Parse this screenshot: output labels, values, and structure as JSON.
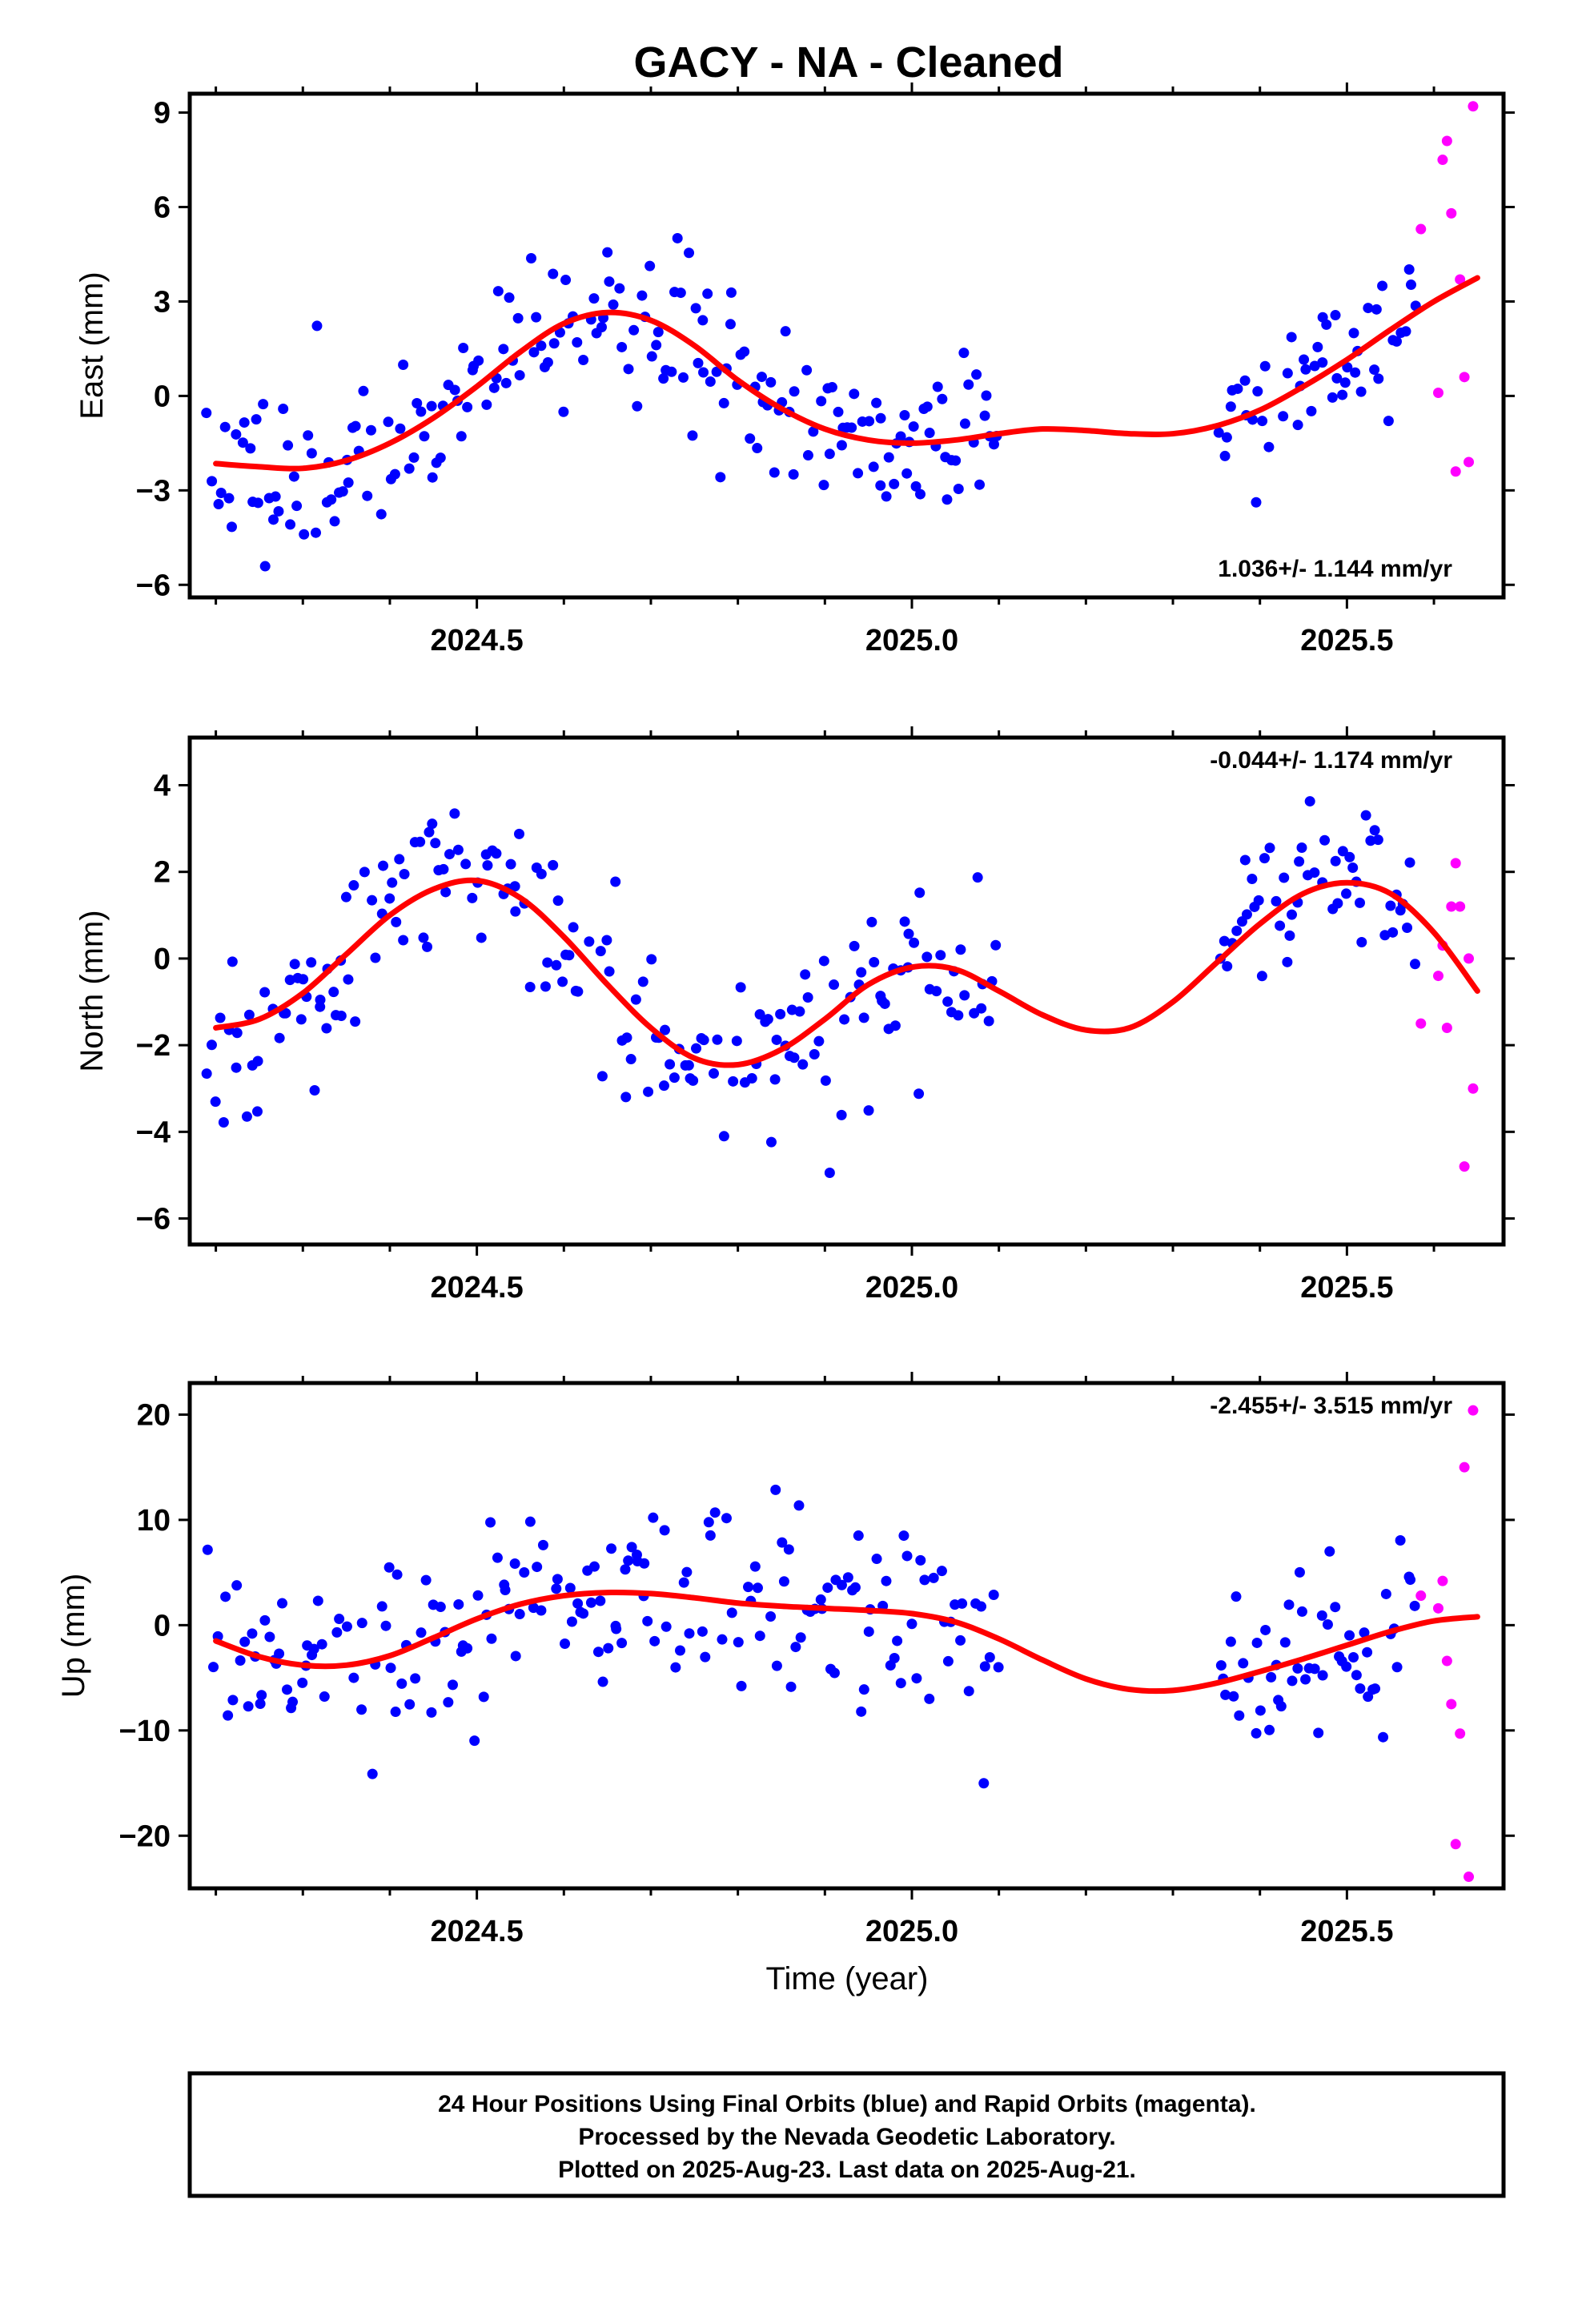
{
  "title": "GACY  - NA - Cleaned",
  "colors": {
    "final": "#0000ff",
    "rapid": "#ff00ff",
    "model": "#ff0000"
  },
  "footer": {
    "line1": "24 Hour Positions Using Final Orbits (blue) and Rapid Orbits (magenta).",
    "line2": "Processed by the Nevada Geodetic Laboratory.",
    "line3": "Plotted on 2025-Aug-23. Last data on 2025-Aug-21."
  },
  "chart_data": [
    {
      "type": "scatter",
      "ylabel": "East (mm)",
      "xlabel": "",
      "xlim": [
        2024.17,
        2025.68
      ],
      "ylim": [
        -6.4,
        9.6
      ],
      "yticks": [
        -6,
        -3,
        0,
        3,
        6,
        9
      ],
      "xticks": [
        2024.5,
        2025.0,
        2025.5
      ],
      "xtick_labels": [
        "2024.5",
        "2025.0",
        "2025.5"
      ],
      "rate": "1.036+/- 1.144 mm/yr",
      "rate_position": "bottom-right",
      "gaps": [
        [
          2025.1,
          2025.35
        ]
      ],
      "model": {
        "x": [
          2024.2,
          2024.25,
          2024.3,
          2024.35,
          2024.4,
          2024.45,
          2024.5,
          2024.55,
          2024.6,
          2024.65,
          2024.7,
          2024.75,
          2024.8,
          2024.85,
          2024.9,
          2024.95,
          2025.0,
          2025.05,
          2025.1,
          2025.15,
          2025.2,
          2025.25,
          2025.3,
          2025.35,
          2025.4,
          2025.45,
          2025.5,
          2025.55,
          2025.6,
          2025.65
        ],
        "y": [
          -2.15,
          -2.25,
          -2.3,
          -2.05,
          -1.5,
          -0.7,
          0.3,
          1.4,
          2.3,
          2.65,
          2.4,
          1.6,
          0.5,
          -0.4,
          -1.05,
          -1.4,
          -1.5,
          -1.4,
          -1.2,
          -1.05,
          -1.1,
          -1.2,
          -1.2,
          -0.95,
          -0.45,
          0.3,
          1.15,
          2.1,
          3.0,
          3.75
        ]
      },
      "rapid": {
        "x": [
          2025.585,
          2025.605,
          2025.61,
          2025.615,
          2025.62,
          2025.625,
          2025.63,
          2025.635,
          2025.64,
          2025.645
        ],
        "y": [
          5.3,
          0.1,
          7.5,
          8.1,
          5.8,
          -2.4,
          3.7,
          0.6,
          -2.1,
          9.2
        ]
      },
      "final_params": {
        "seed": 11,
        "noise": 1.25,
        "step": 0.004,
        "start": 2024.19
      }
    },
    {
      "type": "scatter",
      "ylabel": "North (mm)",
      "xlabel": "",
      "xlim": [
        2024.17,
        2025.68
      ],
      "ylim": [
        -6.6,
        5.1
      ],
      "yticks": [
        -6,
        -4,
        -2,
        0,
        2,
        4
      ],
      "xticks": [
        2024.5,
        2025.0,
        2025.5
      ],
      "xtick_labels": [
        "2024.5",
        "2025.0",
        "2025.5"
      ],
      "rate": "-0.044+/- 1.174 mm/yr",
      "rate_position": "top-right",
      "gaps": [
        [
          2025.1,
          2025.35
        ]
      ],
      "model": {
        "x": [
          2024.2,
          2024.25,
          2024.3,
          2024.35,
          2024.4,
          2024.45,
          2024.5,
          2024.55,
          2024.6,
          2024.65,
          2024.7,
          2024.75,
          2024.8,
          2024.85,
          2024.9,
          2024.95,
          2025.0,
          2025.05,
          2025.1,
          2025.15,
          2025.2,
          2025.25,
          2025.3,
          2025.35,
          2025.4,
          2025.45,
          2025.5,
          2025.55,
          2025.6,
          2025.65
        ],
        "y": [
          -1.6,
          -1.4,
          -0.8,
          0.1,
          1.0,
          1.6,
          1.8,
          1.4,
          0.5,
          -0.6,
          -1.6,
          -2.3,
          -2.45,
          -2.1,
          -1.4,
          -0.6,
          -0.2,
          -0.25,
          -0.75,
          -1.3,
          -1.65,
          -1.6,
          -1.0,
          -0.1,
          0.8,
          1.5,
          1.75,
          1.5,
          0.6,
          -0.75
        ]
      },
      "rapid": {
        "x": [
          2025.585,
          2025.605,
          2025.61,
          2025.615,
          2025.62,
          2025.625,
          2025.63,
          2025.635,
          2025.64,
          2025.645
        ],
        "y": [
          -1.5,
          -0.4,
          0.3,
          -1.6,
          1.2,
          2.2,
          1.2,
          -4.8,
          0.0,
          -3.0
        ]
      },
      "final_params": {
        "seed": 23,
        "noise": 1.0,
        "step": 0.004,
        "start": 2024.19
      }
    },
    {
      "type": "scatter",
      "ylabel": "Up (mm)",
      "xlabel": "Time (year)",
      "xlim": [
        2024.17,
        2025.68
      ],
      "ylim": [
        -25,
        23
      ],
      "yticks": [
        -20,
        -10,
        0,
        10,
        20
      ],
      "xticks": [
        2024.5,
        2025.0,
        2025.5
      ],
      "xtick_labels": [
        "2024.5",
        "2025.0",
        "2025.5"
      ],
      "rate": "-2.455+/- 3.515 mm/yr",
      "rate_position": "top-right",
      "gaps": [
        [
          2025.1,
          2025.35
        ]
      ],
      "model": {
        "x": [
          2024.2,
          2024.25,
          2024.3,
          2024.35,
          2024.4,
          2024.45,
          2024.5,
          2024.55,
          2024.6,
          2024.65,
          2024.7,
          2024.75,
          2024.8,
          2024.85,
          2024.9,
          2024.95,
          2025.0,
          2025.05,
          2025.1,
          2025.15,
          2025.2,
          2025.25,
          2025.3,
          2025.35,
          2025.4,
          2025.45,
          2025.5,
          2025.55,
          2025.6,
          2025.65
        ],
        "y": [
          -1.5,
          -3.0,
          -3.8,
          -3.8,
          -2.9,
          -1.2,
          0.6,
          2.0,
          2.8,
          3.1,
          3.0,
          2.6,
          2.1,
          1.8,
          1.6,
          1.4,
          1.1,
          0.3,
          -1.3,
          -3.3,
          -5.1,
          -6.1,
          -6.2,
          -5.5,
          -4.4,
          -3.2,
          -1.9,
          -0.6,
          0.4,
          0.8
        ]
      },
      "rapid": {
        "x": [
          2025.585,
          2025.605,
          2025.61,
          2025.615,
          2025.62,
          2025.625,
          2025.63,
          2025.635,
          2025.64,
          2025.645
        ],
        "y": [
          2.8,
          1.6,
          4.2,
          -3.4,
          -7.5,
          -20.8,
          -10.3,
          15.0,
          -23.9,
          20.4
        ]
      },
      "final_params": {
        "seed": 37,
        "noise": 4.6,
        "step": 0.004,
        "start": 2024.19
      }
    }
  ]
}
